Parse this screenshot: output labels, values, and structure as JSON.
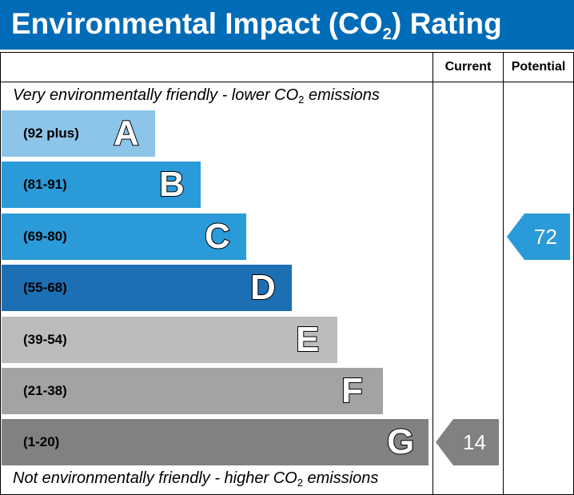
{
  "header": {
    "title_prefix": "Environmental Impact (CO",
    "title_sub": "2",
    "title_suffix": ") Rating"
  },
  "columns": {
    "current": "Current",
    "potential": "Potential"
  },
  "notes": {
    "top_prefix": "Very environmentally friendly - lower CO",
    "top_sub": "2",
    "top_suffix": " emissions",
    "bottom_prefix": "Not environmentally friendly - higher CO",
    "bottom_sub": "2",
    "bottom_suffix": " emissions"
  },
  "chart_data": {
    "type": "bar",
    "title": "Environmental Impact (CO2) Rating",
    "bands": [
      {
        "letter": "A",
        "range": "(92 plus)",
        "color": "#8dc5e8"
      },
      {
        "letter": "B",
        "range": "(81-91)",
        "color": "#2a9ad8"
      },
      {
        "letter": "C",
        "range": "(69-80)",
        "color": "#2a9ad8"
      },
      {
        "letter": "D",
        "range": "(55-68)",
        "color": "#1d6fb4"
      },
      {
        "letter": "E",
        "range": "(39-54)",
        "color": "#bdbcbb"
      },
      {
        "letter": "F",
        "range": "(21-38)",
        "color": "#a4a3a3"
      },
      {
        "letter": "G",
        "range": "(1-20)",
        "color": "#818181"
      }
    ],
    "current": {
      "value": 14,
      "band": "G",
      "color": "#818181"
    },
    "potential": {
      "value": 72,
      "band": "C",
      "color": "#2a9ad8"
    }
  }
}
